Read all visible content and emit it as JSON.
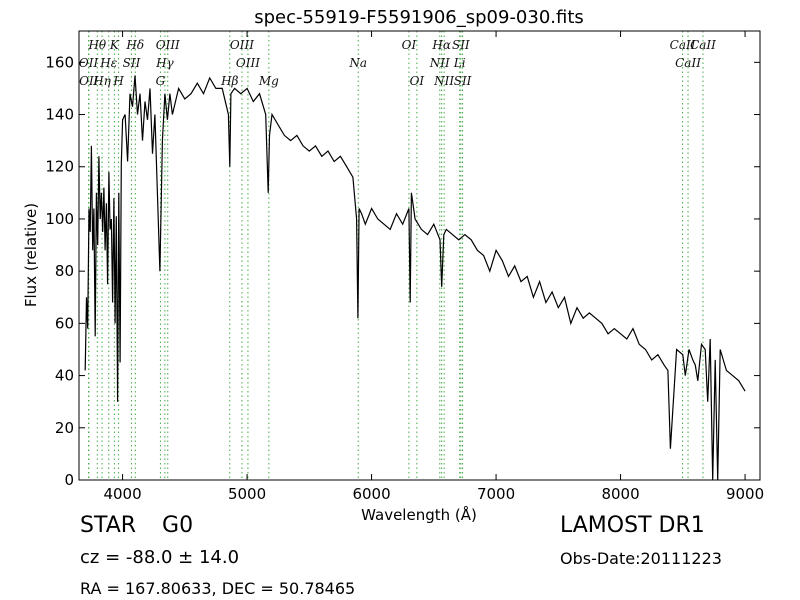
{
  "chart_data": {
    "type": "line",
    "title": "spec-55919-F5591906_sp09-030.fits",
    "xlabel": "Wavelength (Å)",
    "ylabel": "Flux (relative)",
    "xlim": [
      3650,
      9120
    ],
    "ylim": [
      0,
      172
    ],
    "xticks": [
      4000,
      5000,
      6000,
      7000,
      8000,
      9000
    ],
    "yticks": [
      0,
      20,
      40,
      60,
      80,
      100,
      120,
      140,
      160
    ],
    "grid": false,
    "series": [
      {
        "color": "#000000",
        "x": [
          3700,
          3710,
          3720,
          3730,
          3740,
          3750,
          3760,
          3770,
          3780,
          3790,
          3800,
          3810,
          3820,
          3830,
          3840,
          3850,
          3860,
          3870,
          3880,
          3890,
          3900,
          3910,
          3920,
          3930,
          3940,
          3950,
          3960,
          3970,
          3980,
          3990,
          4000,
          4020,
          4040,
          4060,
          4080,
          4100,
          4120,
          4140,
          4160,
          4180,
          4200,
          4220,
          4240,
          4260,
          4280,
          4300,
          4320,
          4340,
          4360,
          4380,
          4400,
          4450,
          4500,
          4550,
          4600,
          4650,
          4700,
          4750,
          4800,
          4850,
          4861,
          4870,
          4900,
          4950,
          5000,
          5050,
          5100,
          5150,
          5170,
          5180,
          5200,
          5250,
          5300,
          5350,
          5400,
          5450,
          5500,
          5550,
          5600,
          5650,
          5700,
          5750,
          5800,
          5850,
          5880,
          5890,
          5900,
          5920,
          5950,
          6000,
          6050,
          6100,
          6150,
          6200,
          6250,
          6300,
          6310,
          6320,
          6350,
          6400,
          6450,
          6500,
          6550,
          6563,
          6580,
          6600,
          6650,
          6700,
          6750,
          6800,
          6850,
          6900,
          6950,
          7000,
          7050,
          7100,
          7150,
          7200,
          7250,
          7300,
          7350,
          7400,
          7450,
          7500,
          7550,
          7600,
          7650,
          7700,
          7750,
          7800,
          7850,
          7900,
          7950,
          8000,
          8050,
          8100,
          8150,
          8200,
          8250,
          8300,
          8350,
          8380,
          8400,
          8450,
          8500,
          8520,
          8550,
          8580,
          8600,
          8620,
          8650,
          8680,
          8700,
          8720,
          8740,
          8760,
          8780,
          8800,
          8850,
          8900,
          8950,
          9000
        ],
        "y": [
          42,
          70,
          58,
          104,
          95,
          128,
          88,
          104,
          55,
          110,
          90,
          124,
          100,
          110,
          95,
          112,
          88,
          106,
          75,
          118,
          96,
          100,
          68,
          108,
          60,
          101,
          30,
          110,
          45,
          121,
          138,
          140,
          122,
          148,
          143,
          155,
          140,
          148,
          130,
          145,
          138,
          150,
          125,
          140,
          110,
          80,
          130,
          148,
          138,
          148,
          140,
          150,
          146,
          148,
          152,
          148,
          154,
          150,
          150,
          140,
          120,
          148,
          150,
          148,
          150,
          145,
          148,
          140,
          110,
          132,
          140,
          136,
          132,
          130,
          132,
          128,
          126,
          128,
          124,
          126,
          122,
          124,
          120,
          116,
          100,
          62,
          104,
          102,
          98,
          104,
          100,
          98,
          96,
          102,
          98,
          104,
          68,
          110,
          100,
          96,
          94,
          98,
          92,
          74,
          94,
          96,
          94,
          92,
          94,
          92,
          88,
          86,
          80,
          88,
          84,
          78,
          82,
          76,
          78,
          70,
          76,
          68,
          72,
          66,
          70,
          60,
          66,
          62,
          64,
          62,
          60,
          56,
          58,
          56,
          54,
          58,
          52,
          50,
          46,
          48,
          44,
          42,
          12,
          50,
          48,
          40,
          50,
          46,
          44,
          38,
          52,
          50,
          30,
          54,
          0,
          46,
          0,
          50,
          42,
          40,
          38,
          34
        ]
      }
    ],
    "annotations": [
      {
        "text": "Hθ",
        "x": 3797
      },
      {
        "text": "K",
        "x": 3934
      },
      {
        "text": "Hδ",
        "x": 4102
      },
      {
        "text": "OIII",
        "x": 4363
      },
      {
        "text": "OIII",
        "x": 4959
      },
      {
        "text": "OI",
        "x": 6300
      },
      {
        "text": "Hα",
        "x": 6563
      },
      {
        "text": "SII",
        "x": 6717
      },
      {
        "text": "CaII",
        "x": 8498
      },
      {
        "text": "OII",
        "x": 3727
      },
      {
        "text": "Hε",
        "x": 3889
      },
      {
        "text": "SII",
        "x": 4072
      },
      {
        "text": "Hγ",
        "x": 4340
      },
      {
        "text": "OIII",
        "x": 5007
      },
      {
        "text": "Na",
        "x": 5893
      },
      {
        "text": "NII",
        "x": 6548
      },
      {
        "text": "Li",
        "x": 6708
      },
      {
        "text": "CaII",
        "x": 8542
      },
      {
        "text": "OII",
        "x": 3729
      },
      {
        "text": "Hη",
        "x": 3835
      },
      {
        "text": "H",
        "x": 3968
      },
      {
        "text": "G",
        "x": 4304
      },
      {
        "text": "Hβ",
        "x": 4861
      },
      {
        "text": "Mg",
        "x": 5175
      },
      {
        "text": "OI",
        "x": 6364
      },
      {
        "text": "NII",
        "x": 6583
      },
      {
        "text": "SII",
        "x": 6731
      },
      {
        "text": "CaII",
        "x": 8662
      }
    ],
    "line_marker_color": "#44aa44"
  },
  "info": {
    "class": "STAR",
    "subclass": "G0",
    "cz": "cz = -88.0 ± 14.0",
    "radec": "RA = 167.80633, DEC = 50.78465",
    "survey": "LAMOST DR1",
    "obs_date": "Obs-Date:20111223"
  }
}
